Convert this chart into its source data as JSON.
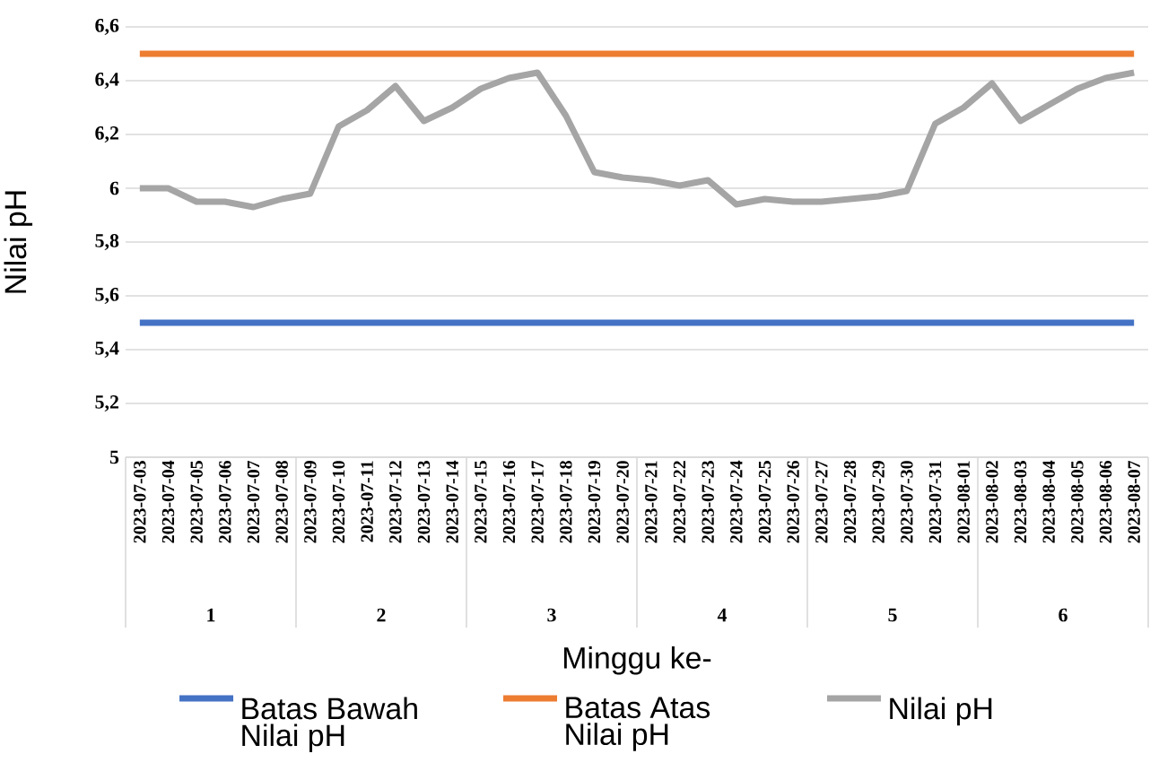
{
  "chart_data": {
    "type": "line",
    "xlabel": "Minggu ke-",
    "ylabel": "Nilai pH",
    "categories": [
      "2023-07-03",
      "2023-07-04",
      "2023-07-05",
      "2023-07-06",
      "2023-07-07",
      "2023-07-08",
      "2023-07-09",
      "2023-07-10",
      "2023-07-11",
      "2023-07-12",
      "2023-07-13",
      "2023-07-14",
      "2023-07-15",
      "2023-07-16",
      "2023-07-17",
      "2023-07-18",
      "2023-07-19",
      "2023-07-20",
      "2023-07-21",
      "2023-07-22",
      "2023-07-23",
      "2023-07-24",
      "2023-07-25",
      "2023-07-26",
      "2023-07-27",
      "2023-07-28",
      "2023-07-29",
      "2023-07-30",
      "2023-07-31",
      "2023-08-01",
      "2023-08-02",
      "2023-08-03",
      "2023-08-04",
      "2023-08-05",
      "2023-08-06",
      "2023-08-07"
    ],
    "series": [
      {
        "name": "Batas Bawah Nilai pH",
        "color": "#4472c4",
        "values": [
          5.5,
          5.5,
          5.5,
          5.5,
          5.5,
          5.5,
          5.5,
          5.5,
          5.5,
          5.5,
          5.5,
          5.5,
          5.5,
          5.5,
          5.5,
          5.5,
          5.5,
          5.5,
          5.5,
          5.5,
          5.5,
          5.5,
          5.5,
          5.5,
          5.5,
          5.5,
          5.5,
          5.5,
          5.5,
          5.5,
          5.5,
          5.5,
          5.5,
          5.5,
          5.5,
          5.5
        ]
      },
      {
        "name": "Batas Atas Nilai pH",
        "color": "#ed7d31",
        "values": [
          6.5,
          6.5,
          6.5,
          6.5,
          6.5,
          6.5,
          6.5,
          6.5,
          6.5,
          6.5,
          6.5,
          6.5,
          6.5,
          6.5,
          6.5,
          6.5,
          6.5,
          6.5,
          6.5,
          6.5,
          6.5,
          6.5,
          6.5,
          6.5,
          6.5,
          6.5,
          6.5,
          6.5,
          6.5,
          6.5,
          6.5,
          6.5,
          6.5,
          6.5,
          6.5,
          6.5
        ]
      },
      {
        "name": "Nilai pH",
        "color": "#a5a5a5",
        "values": [
          6.0,
          6.0,
          5.95,
          5.95,
          5.93,
          5.96,
          5.98,
          6.23,
          6.29,
          6.38,
          6.25,
          6.3,
          6.37,
          6.41,
          6.43,
          6.27,
          6.06,
          6.04,
          6.03,
          6.01,
          6.03,
          5.94,
          5.96,
          5.95,
          5.95,
          5.96,
          5.97,
          5.99,
          6.24,
          6.3,
          6.39,
          6.25,
          6.31,
          6.37,
          6.41,
          6.43
        ]
      }
    ],
    "ylim": [
      5,
      6.6
    ],
    "yticks": [
      5,
      {
        "value": 5.2,
        "label": "5,2"
      },
      {
        "value": 5.4,
        "label": "5,4"
      },
      {
        "value": 5.6,
        "label": "5,6"
      },
      {
        "value": 5.8,
        "label": "5,8"
      },
      6,
      {
        "value": 6.2,
        "label": "6,2"
      },
      {
        "value": 6.4,
        "label": "6,4"
      },
      {
        "value": 6.6,
        "label": "6,6"
      }
    ],
    "annotations": [
      "1",
      "2",
      "3",
      "4",
      "5",
      "6"
    ],
    "grid": "y",
    "legend": "bottom"
  }
}
